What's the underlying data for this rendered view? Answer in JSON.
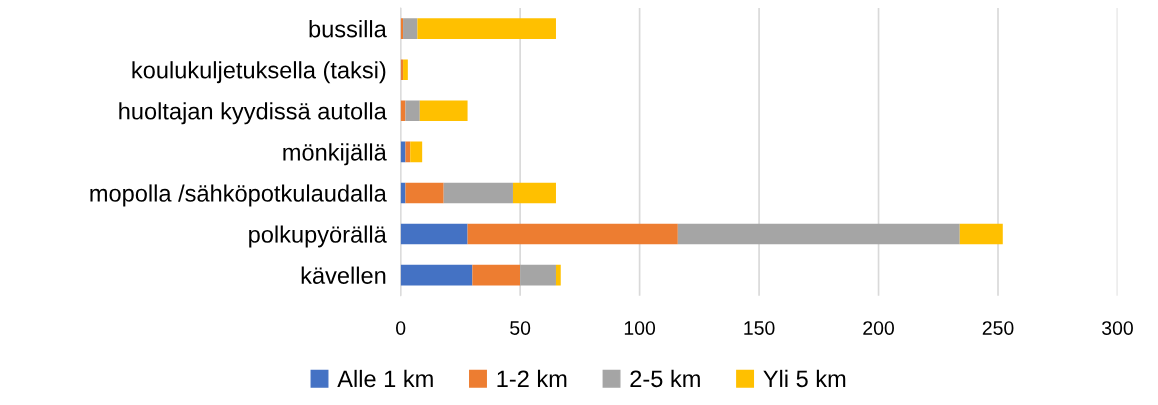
{
  "chart_data": {
    "type": "bar",
    "orientation": "horizontal",
    "stacked": true,
    "categories": [
      "bussilla",
      "koulukuljetuksella (taksi)",
      "huoltajan kyydissä autolla",
      "mönkijällä",
      "mopolla /sähköpotkulaudalla",
      "polkupyörällä",
      "kävellen"
    ],
    "series": [
      {
        "name": "Alle 1 km",
        "color": "#4472c4",
        "values": [
          0,
          0,
          0,
          2,
          2,
          28,
          30
        ]
      },
      {
        "name": "1-2 km",
        "color": "#ed7d31",
        "values": [
          1,
          1,
          2,
          2,
          16,
          88,
          20
        ]
      },
      {
        "name": "2-5 km",
        "color": "#a5a5a5",
        "values": [
          6,
          0,
          6,
          0,
          29,
          118,
          15
        ]
      },
      {
        "name": "Yli 5 km",
        "color": "#ffc000",
        "values": [
          58,
          2,
          20,
          5,
          18,
          18,
          2
        ]
      }
    ],
    "xlim": [
      0,
      300
    ],
    "xticks": [
      0,
      50,
      100,
      150,
      200,
      250,
      300
    ],
    "grid": "x",
    "legend": "bottom"
  }
}
